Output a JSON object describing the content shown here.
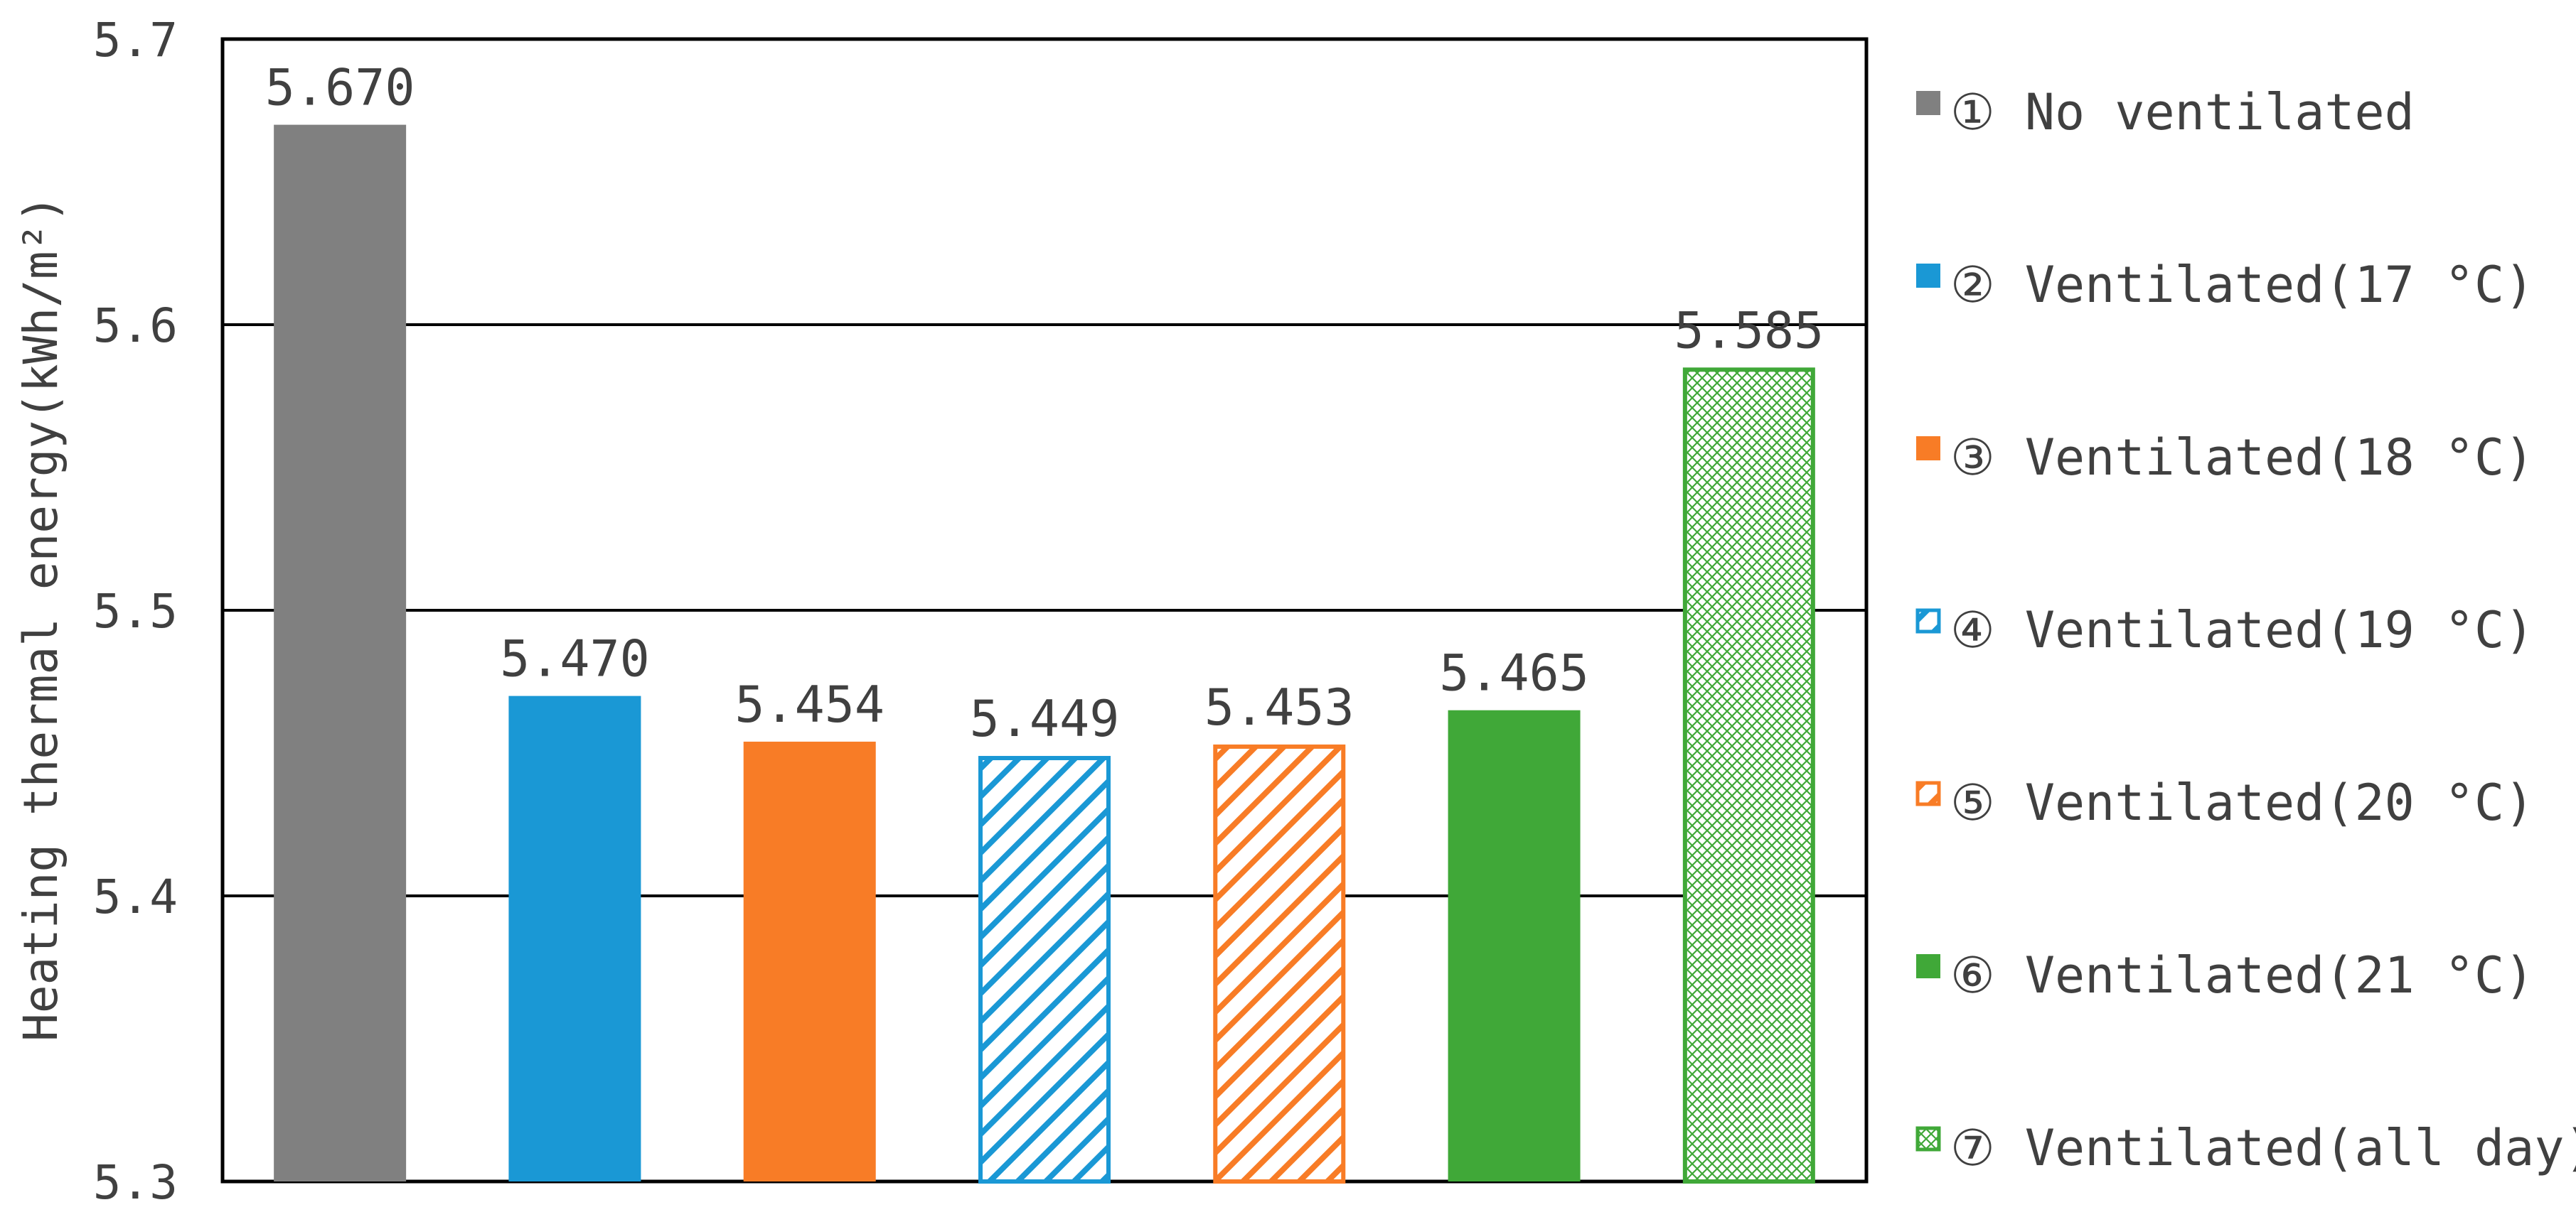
{
  "chart_data": {
    "type": "bar",
    "title": "",
    "xlabel": "",
    "ylabel": "Heating thermal energy(kWh/m²)",
    "ylim": [
      5.3,
      5.7
    ],
    "yticks": [
      "5.3",
      "5.4",
      "5.5",
      "5.6",
      "5.7"
    ],
    "grid": true,
    "legend_position": "right",
    "categories": [
      "① No ventilated",
      "② Ventilated(17 °C)",
      "③ Ventilated(18 °C)",
      "④ Ventilated(19 °C)",
      "⑤ Ventilated(20 °C)",
      "⑥ Ventilated(21 °C)",
      "⑦ Ventilated(all day)"
    ],
    "values": [
      5.67,
      5.47,
      5.454,
      5.449,
      5.453,
      5.465,
      5.585
    ],
    "value_labels": [
      "5.670",
      "5.470",
      "5.454",
      "5.449",
      "5.453",
      "5.465",
      "5.585"
    ],
    "colors": [
      "#808080",
      "#1a98d5",
      "#f87c26",
      "#1a98d5",
      "#f87c26",
      "#40a838",
      "#40a838"
    ],
    "patterns": [
      "solid",
      "solid",
      "solid",
      "diagonal",
      "diagonal",
      "solid",
      "crosshatch"
    ]
  }
}
